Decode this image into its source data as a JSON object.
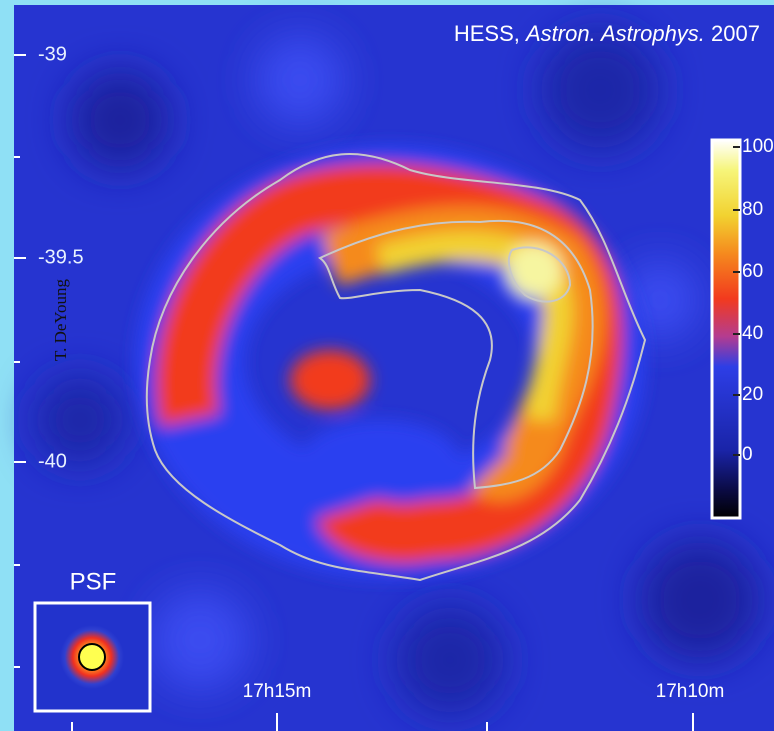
{
  "credit": {
    "source": "HESS,",
    "journal": "Astron. Astrophys.",
    "year": "2007"
  },
  "y_axis": {
    "labels": [
      "-39",
      "-39.5",
      "-40"
    ]
  },
  "x_axis": {
    "labels": [
      "17h15m",
      "17h10m"
    ]
  },
  "colorbar": {
    "labels": [
      "100",
      "80",
      "60",
      "40",
      "20",
      "0"
    ]
  },
  "watermark": "T. DeYoung",
  "psf": {
    "label": "PSF"
  }
}
